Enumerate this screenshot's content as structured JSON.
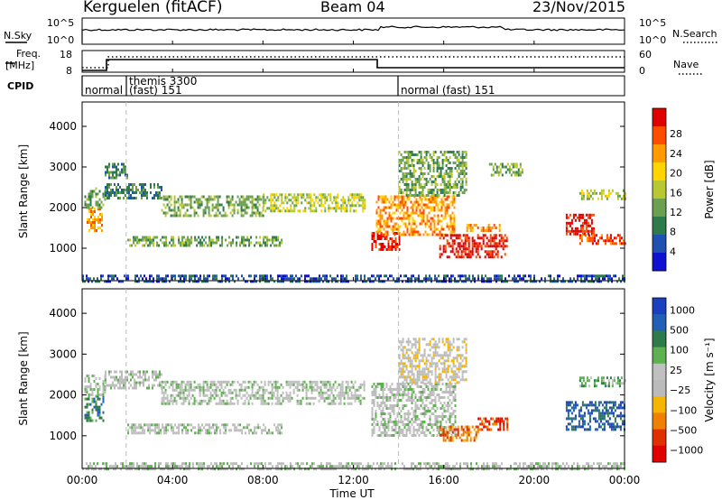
{
  "header": {
    "title": "Kerguelen (fitACF)",
    "beam": "Beam 04",
    "date": "23/Nov/2015"
  },
  "noise_panel": {
    "left_label": "N.Sky",
    "left_ticks": [
      "10^5",
      "10^0"
    ],
    "right_ticks": [
      "10^5",
      "10^0"
    ],
    "right_label": "N.Search"
  },
  "freq_panel": {
    "left_label_1": "Freq.",
    "left_label_2": "[MHz]",
    "left_ticks": [
      "18",
      "8"
    ],
    "right_ticks": [
      "60",
      "0"
    ],
    "right_label": "Nave"
  },
  "cpid_panel": {
    "label": "CPID",
    "segments": [
      {
        "line1": "",
        "line2": "normal"
      },
      {
        "line1": "themis 3300",
        "line2": "(fast) 151"
      },
      {
        "line1": "",
        "line2": "normal (fast) 151"
      }
    ]
  },
  "time_axis": {
    "label": "Time UT",
    "ticks": [
      "00:00",
      "04:00",
      "08:00",
      "12:00",
      "16:00",
      "20:00",
      "00:00"
    ]
  },
  "colors": {
    "power": [
      "#1010d0",
      "#2050b0",
      "#2f7a4a",
      "#6aa050",
      "#b8c833",
      "#ffd400",
      "#ff9a00",
      "#ff4d00",
      "#e00000"
    ],
    "velocity": [
      "#1a3fbf",
      "#2260b8",
      "#2f7a4a",
      "#5fb050",
      "#c0c0c0",
      "#bbbbbb",
      "#f4b400",
      "#f08000",
      "#e03000",
      "#e00000"
    ]
  },
  "chart_data": [
    {
      "type": "heatmap",
      "name": "power_panel",
      "ylabel": "Slant Range [km]",
      "ylim": [
        200,
        4600
      ],
      "y_ticks": [
        1000,
        2000,
        3000,
        4000
      ],
      "xlabel": "",
      "xlim": [
        0,
        24
      ],
      "colorbar": {
        "label": "Power [dB]",
        "ticks": [
          "4",
          "8",
          "12",
          "16",
          "20",
          "24",
          "28"
        ]
      },
      "regions": [
        {
          "t0": 0.0,
          "t1": 24.0,
          "r0": 200,
          "r1": 350,
          "level": 1
        },
        {
          "t0": 0.2,
          "t1": 0.9,
          "r0": 1400,
          "r1": 2000,
          "level": 6
        },
        {
          "t0": 0.1,
          "t1": 1.0,
          "r0": 2000,
          "r1": 2500,
          "level": 3
        },
        {
          "t0": 1.0,
          "t1": 3.5,
          "r0": 2200,
          "r1": 2600,
          "level": 2
        },
        {
          "t0": 1.0,
          "t1": 2.0,
          "r0": 2700,
          "r1": 3100,
          "level": 2
        },
        {
          "t0": 3.5,
          "t1": 8.0,
          "r0": 1800,
          "r1": 2300,
          "level": 3
        },
        {
          "t0": 8.0,
          "t1": 12.5,
          "r0": 1900,
          "r1": 2350,
          "level": 4
        },
        {
          "t0": 2.0,
          "t1": 8.8,
          "r0": 1050,
          "r1": 1300,
          "level": 3
        },
        {
          "t0": 12.8,
          "t1": 14.0,
          "r0": 950,
          "r1": 1400,
          "level": 8
        },
        {
          "t0": 13.0,
          "t1": 16.5,
          "r0": 1300,
          "r1": 2300,
          "level": 6
        },
        {
          "t0": 14.0,
          "t1": 17.0,
          "r0": 2300,
          "r1": 3400,
          "level": 3
        },
        {
          "t0": 15.8,
          "t1": 18.8,
          "r0": 750,
          "r1": 1350,
          "level": 8
        },
        {
          "t0": 17.0,
          "t1": 18.5,
          "r0": 1400,
          "r1": 1600,
          "level": 6
        },
        {
          "t0": 21.4,
          "t1": 22.6,
          "r0": 1350,
          "r1": 1850,
          "level": 8
        },
        {
          "t0": 22.0,
          "t1": 24.0,
          "r0": 1100,
          "r1": 1350,
          "level": 7
        },
        {
          "t0": 22.0,
          "t1": 24.0,
          "r0": 2200,
          "r1": 2450,
          "level": 4
        },
        {
          "t0": 18.0,
          "t1": 19.5,
          "r0": 2800,
          "r1": 3100,
          "level": 3
        }
      ]
    },
    {
      "type": "heatmap",
      "name": "velocity_panel",
      "ylabel": "Slant Range [km]",
      "ylim": [
        200,
        4600
      ],
      "y_ticks": [
        1000,
        2000,
        3000,
        4000
      ],
      "xlabel": "Time UT",
      "xlim": [
        0,
        24
      ],
      "colorbar": {
        "label": "Velocity [m s⁻¹]",
        "ticks": [
          "1000",
          "500",
          "100",
          "25",
          "−25",
          "−100",
          "−500",
          "−1000"
        ]
      },
      "regions": [
        {
          "t0": 0.1,
          "t1": 0.9,
          "r0": 1400,
          "r1": 2000,
          "level": 2
        },
        {
          "t0": 0.1,
          "t1": 1.0,
          "r0": 2000,
          "r1": 2500,
          "level": 4
        },
        {
          "t0": 1.0,
          "t1": 3.5,
          "r0": 2200,
          "r1": 2600,
          "level": 4
        },
        {
          "t0": 3.5,
          "t1": 12.5,
          "r0": 1800,
          "r1": 2350,
          "level": 4
        },
        {
          "t0": 2.0,
          "t1": 8.8,
          "r0": 1050,
          "r1": 1300,
          "level": 4
        },
        {
          "t0": 12.8,
          "t1": 16.5,
          "r0": 1000,
          "r1": 2300,
          "level": 4
        },
        {
          "t0": 14.0,
          "t1": 17.0,
          "r0": 2300,
          "r1": 3400,
          "level": 5
        },
        {
          "t0": 15.8,
          "t1": 17.5,
          "r0": 900,
          "r1": 1250,
          "level": 7
        },
        {
          "t0": 17.5,
          "t1": 18.8,
          "r0": 1150,
          "r1": 1450,
          "level": 8
        },
        {
          "t0": 21.4,
          "t1": 24.0,
          "r0": 1150,
          "r1": 1850,
          "level": 1
        },
        {
          "t0": 22.0,
          "t1": 24.0,
          "r0": 2200,
          "r1": 2450,
          "level": 3
        },
        {
          "t0": 0.0,
          "t1": 24.0,
          "r0": 200,
          "r1": 350,
          "level": 4
        }
      ]
    }
  ]
}
